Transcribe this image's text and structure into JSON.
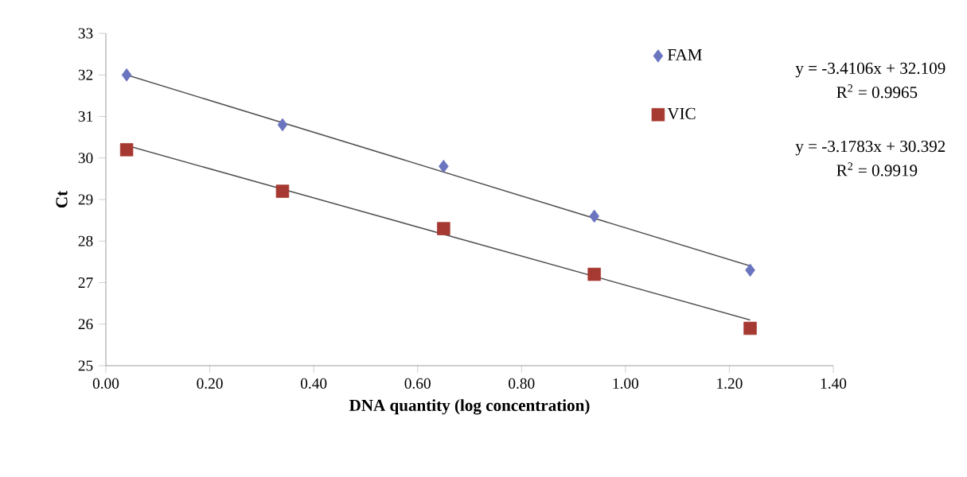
{
  "chart_data": {
    "type": "scatter",
    "xlabel": "DNA quantity (log concentration)",
    "ylabel": "Ct",
    "xlim": [
      0,
      1.4
    ],
    "ylim": [
      25,
      33
    ],
    "xticks": [
      {
        "value": 0,
        "label": "0.00"
      },
      {
        "value": 0.2,
        "label": "0.20"
      },
      {
        "value": 0.4,
        "label": "0.40"
      },
      {
        "value": 0.6,
        "label": "0.60"
      },
      {
        "value": 0.8,
        "label": "0.80"
      },
      {
        "value": 1.0,
        "label": "1.00"
      },
      {
        "value": 1.2,
        "label": "1.20"
      },
      {
        "value": 1.4,
        "label": "1.40"
      }
    ],
    "yticks": [
      25,
      26,
      27,
      28,
      29,
      30,
      31,
      32,
      33
    ],
    "grid": false,
    "legend": "top right",
    "series": [
      {
        "name": "FAM",
        "marker": "diamond",
        "color": "#6a74bf",
        "x": [
          0.04,
          0.34,
          0.65,
          0.94,
          1.24
        ],
        "values": [
          32.0,
          30.8,
          29.8,
          28.6,
          27.3
        ]
      },
      {
        "name": "VIC",
        "marker": "square",
        "color": "#a63a32",
        "x": [
          0.04,
          0.34,
          0.65,
          0.94,
          1.24
        ],
        "values": [
          30.2,
          29.2,
          28.3,
          27.2,
          25.9
        ]
      },
      {
        "type": "line",
        "marker": "none",
        "line_style": "solid",
        "color": "#555555",
        "x": [
          0.04,
          1.24
        ],
        "values": [
          32.0,
          27.4
        ]
      },
      {
        "type": "line",
        "marker": "none",
        "line_style": "solid",
        "color": "#555555",
        "x": [
          0.04,
          1.24
        ],
        "values": [
          30.3,
          26.1
        ]
      }
    ],
    "annotations": [
      "y = -3.4106x + 32.109",
      "R$^{2}$ = 0.9965",
      "y = -3.1783x + 30.392",
      "R$^{2}$ = 0.9919"
    ]
  }
}
